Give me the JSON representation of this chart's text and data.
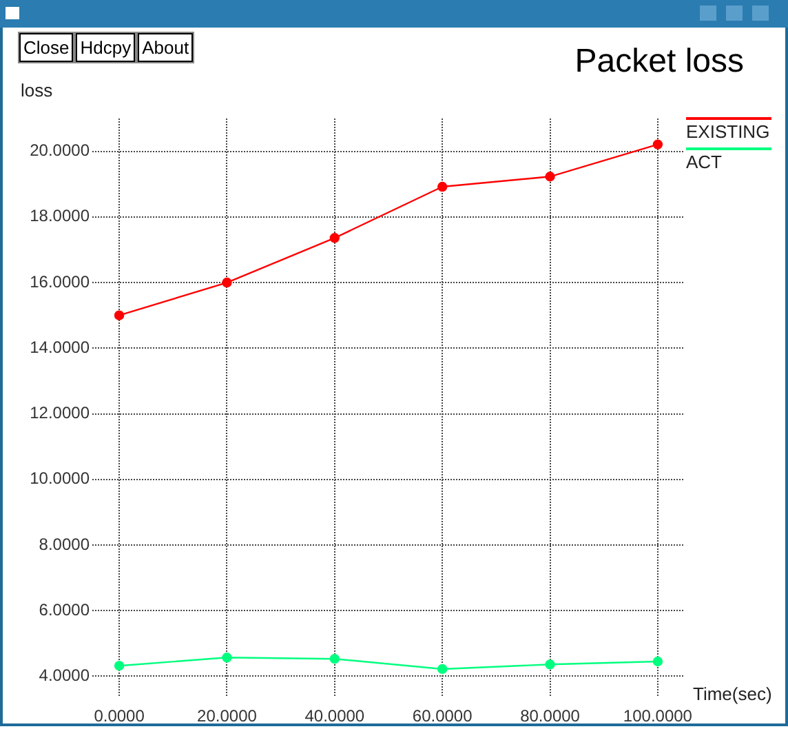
{
  "chart_data": {
    "type": "line",
    "title": "Packet loss",
    "xlabel": "Time(sec)",
    "ylabel": "loss",
    "annotations": [
      "Close",
      "Hdcpy",
      "About"
    ],
    "x": [
      0,
      20,
      40,
      60,
      80,
      100
    ],
    "series": [
      {
        "name": "EXISTING",
        "color": "#ff0000",
        "values": [
          15.0,
          16.0,
          17.36,
          18.92,
          19.23,
          20.21
        ]
      },
      {
        "name": "ACT",
        "color": "#00ff7f",
        "values": [
          4.32,
          4.57,
          4.53,
          4.22,
          4.36,
          4.45
        ]
      }
    ],
    "xlim": [
      -5,
      105
    ],
    "ylim": [
      3.4,
      21
    ],
    "xticks": [
      {
        "value": 0,
        "label": "0.0000"
      },
      {
        "value": 20,
        "label": "20.0000"
      },
      {
        "value": 40,
        "label": "40.0000"
      },
      {
        "value": 60,
        "label": "60.0000"
      },
      {
        "value": 80,
        "label": "80.0000"
      },
      {
        "value": 100,
        "label": "100.0000"
      }
    ],
    "yticks": [
      {
        "value": 4,
        "label": "4.0000"
      },
      {
        "value": 6,
        "label": "6.0000"
      },
      {
        "value": 8,
        "label": "8.0000"
      },
      {
        "value": 10,
        "label": "10.0000"
      },
      {
        "value": 12,
        "label": "12.0000"
      },
      {
        "value": 14,
        "label": "14.0000"
      },
      {
        "value": 16,
        "label": "16.0000"
      },
      {
        "value": 18,
        "label": "18.0000"
      },
      {
        "value": 20,
        "label": "20.0000"
      }
    ],
    "grid": true,
    "legend": "top right",
    "marker": "circle",
    "line_style": "solid"
  }
}
